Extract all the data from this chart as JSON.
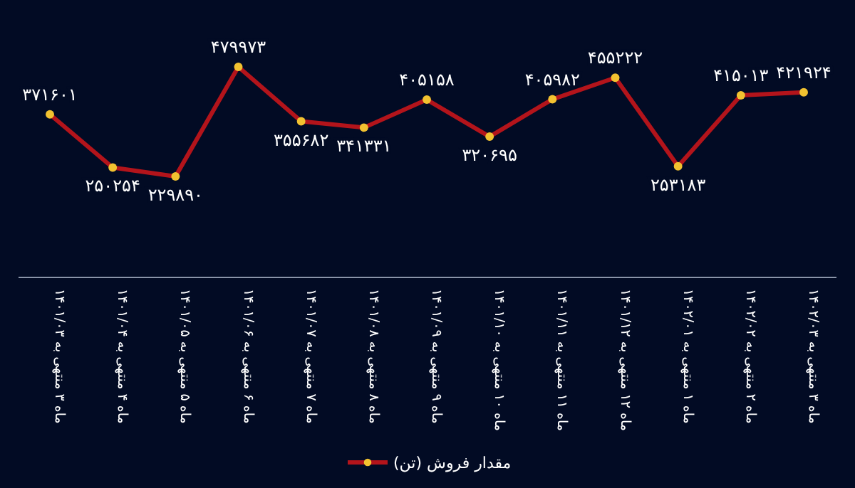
{
  "chart_data": {
    "type": "line",
    "categories": [
      "ماه ۳ منتهی به ۱۴۰۱/۰۳",
      "ماه ۴ منتهی به ۱۴۰۱/۰۴",
      "ماه ۵ منتهی به ۱۴۰۱/۰۵",
      "ماه ۶ منتهی به ۱۴۰۱/۰۶",
      "ماه ۷ منتهی به ۱۴۰۱/۰۷",
      "ماه ۸ منتهی به ۱۴۰۱/۰۸",
      "ماه ۹ منتهی به ۱۴۰۱/۰۹",
      "ماه ۱۰ منتهی به ۱۴۰۱/۱۰",
      "ماه ۱۱ منتهی به ۱۴۰۱/۱۱",
      "ماه ۱۲ منتهی به ۱۴۰۱/۱۲",
      "ماه ۱ منتهی به ۱۴۰۲/۰۱",
      "ماه ۲ منتهی به ۱۴۰۲/۰۲",
      "ماه ۳ منتهی به ۱۴۰۲/۰۳"
    ],
    "series": [
      {
        "name": "مقدار فروش (تن)",
        "color": "#b3141b",
        "values": [
          371601,
          250254,
          229890,
          479973,
          355682,
          341331,
          405158,
          320695,
          405982,
          455222,
          253183,
          415013,
          421924
        ],
        "value_labels": [
          "۳۷۱۶۰۱",
          "۲۵۰۲۵۴",
          "۲۲۹۸۹۰",
          "۴۷۹۹۷۳",
          "۳۵۵۶۸۲",
          "۳۴۱۳۳۱",
          "۴۰۵۱۵۸",
          "۳۲۰۶۹۵",
          "۴۰۵۹۸۲",
          "۴۵۵۲۲۲",
          "۲۵۳۱۸۳",
          "۴۱۵۰۱۳",
          "۴۲۱۹۲۴"
        ]
      }
    ],
    "marker": "circle",
    "legend": "bottom",
    "grid": false
  }
}
